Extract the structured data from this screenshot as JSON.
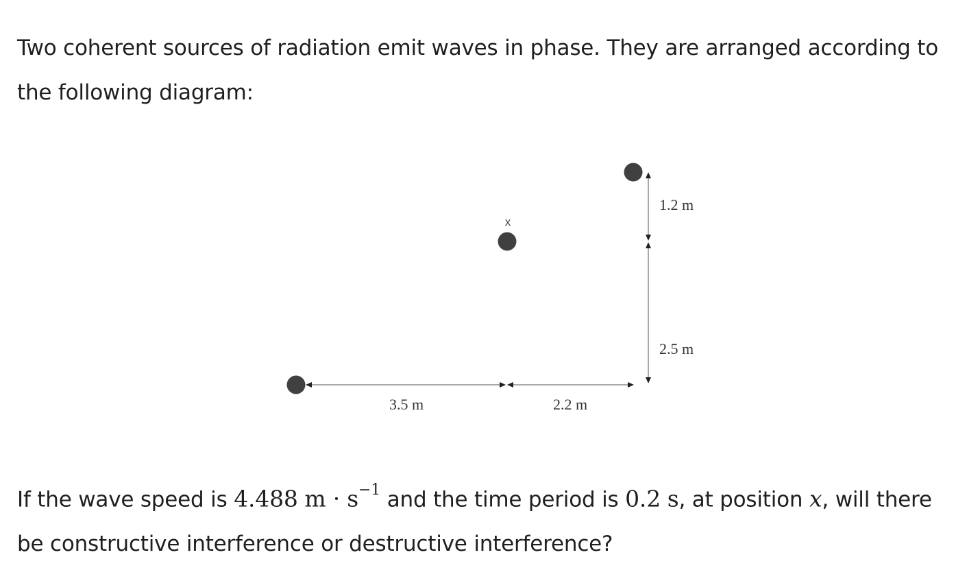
{
  "intro": {
    "text": "Two coherent sources of radiation emit waves in phase. They are arranged according to the following diagram:"
  },
  "diagram": {
    "labels": {
      "horizontal_left": "3.5 m",
      "horizontal_right": "2.2 m",
      "vertical_top": "1.2 m",
      "vertical_bottom": "2.5 m",
      "position_marker": "x"
    },
    "colors": {
      "source_fill": "#404040",
      "line": "#555555"
    }
  },
  "question": {
    "part1": "If the wave speed is ",
    "speed_value": "4.488",
    "speed_unit": "m · s",
    "speed_exp": "−1",
    "part2": " and the time period is ",
    "period_value": "0.2",
    "period_unit": "s",
    "part3": ", at position ",
    "position_var": "x",
    "part4": ", will there be constructive interference or destructive interference?"
  }
}
